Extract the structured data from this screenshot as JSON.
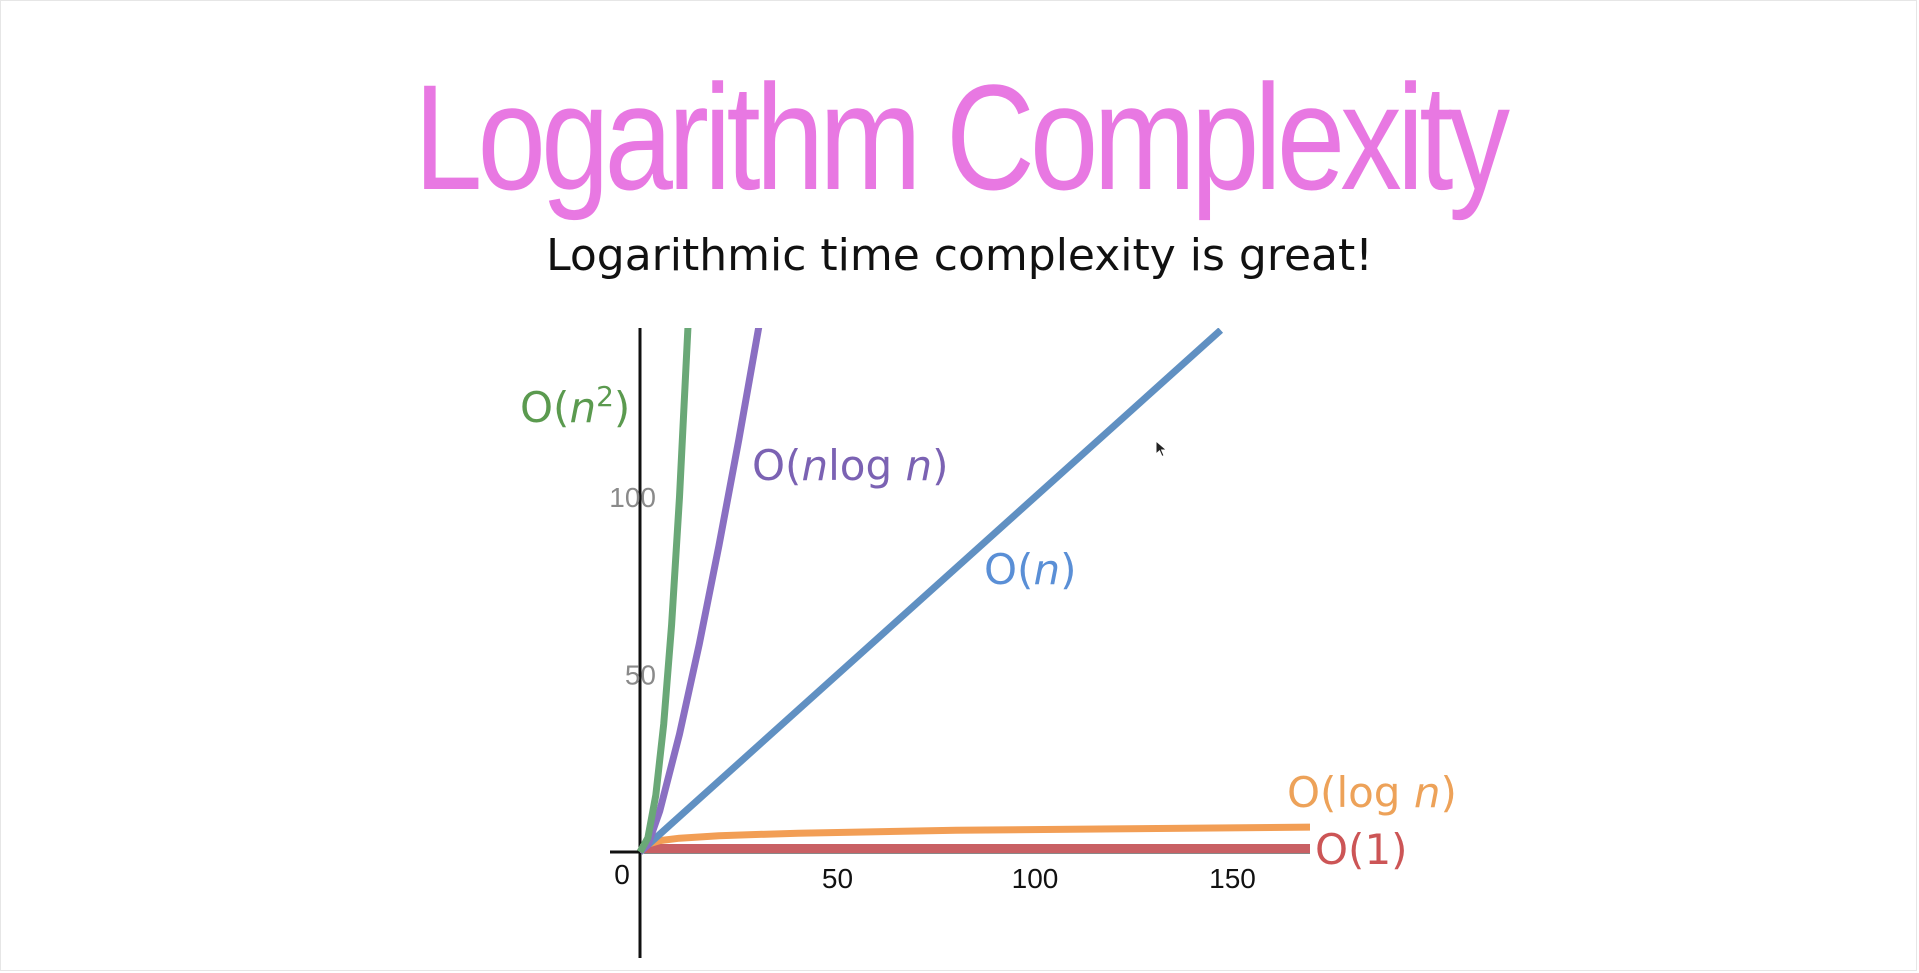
{
  "slide": {
    "title": "Logarithm Complexity",
    "subtitle": "Logarithmic time complexity is great!",
    "title_color": "#e878e2",
    "subtitle_color": "#111111"
  },
  "chart_data": {
    "type": "line",
    "title": "",
    "xlabel": "",
    "ylabel": "",
    "xlim": [
      0,
      170
    ],
    "ylim": [
      0,
      147
    ],
    "x_ticks": [
      50,
      100,
      150
    ],
    "y_ticks": [
      50,
      100
    ],
    "origin_label": "0",
    "grid": false,
    "series": [
      {
        "name": "O(n²)",
        "label_parts": [
          {
            "t": "O("
          },
          {
            "t": "n",
            "i": true
          },
          {
            "t": "2",
            "sup": true
          },
          {
            "t": ")"
          }
        ],
        "color": "#5b9a4f",
        "stroke": "#6aa877",
        "function": "n^2",
        "x": [
          0,
          2,
          4,
          6,
          8,
          10,
          12.5
        ],
        "y": [
          0,
          4,
          16,
          36,
          64,
          100,
          156
        ]
      },
      {
        "name": "O(n log n)",
        "label_parts": [
          {
            "t": "O("
          },
          {
            "t": "n",
            "i": true
          },
          {
            "t": "log "
          },
          {
            "t": "n",
            "i": true
          },
          {
            "t": ")"
          }
        ],
        "color": "#7b62b3",
        "stroke": "#8a6fc2",
        "function": "n log2 n",
        "x": [
          0,
          2,
          5,
          10,
          15,
          20,
          25,
          30.5
        ],
        "y": [
          0,
          2,
          11.6,
          33.2,
          58.6,
          86.4,
          116.1,
          150.6
        ]
      },
      {
        "name": "O(n)",
        "label_parts": [
          {
            "t": "O("
          },
          {
            "t": "n",
            "i": true
          },
          {
            "t": ")"
          }
        ],
        "color": "#5a8fd6",
        "stroke": "#6090c2",
        "function": "n",
        "x": [
          0,
          147
        ],
        "y": [
          0,
          147
        ]
      },
      {
        "name": "O(log n)",
        "label_parts": [
          {
            "t": "O(log "
          },
          {
            "t": "n",
            "i": true
          },
          {
            "t": ")"
          }
        ],
        "color": "#eda259",
        "stroke": "#f29e55",
        "function": "log2 n",
        "x": [
          0,
          1,
          2,
          5,
          10,
          20,
          40,
          80,
          120,
          170
        ],
        "y": [
          0,
          1.5,
          2.2,
          3.2,
          3.9,
          4.6,
          5.3,
          6.1,
          6.5,
          7.0
        ]
      },
      {
        "name": "O(1)",
        "label_parts": [
          {
            "t": "O(1)"
          }
        ],
        "color": "#cc5556",
        "stroke": "#c96064",
        "function": "1",
        "x": [
          0,
          170
        ],
        "y": [
          1,
          1
        ]
      }
    ]
  }
}
